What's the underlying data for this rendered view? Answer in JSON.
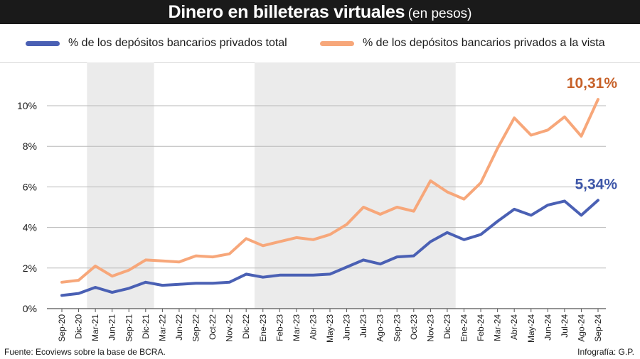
{
  "header": {
    "title": "Dinero en billeteras virtuales",
    "subtitle": "(en pesos)"
  },
  "legend": [
    {
      "label": "% de los depósitos bancarios privados total",
      "color": "#4a60b4"
    },
    {
      "label": "% de los depósitos bancarios privados a la vista",
      "color": "#f7a77a"
    }
  ],
  "footer": {
    "source": "Fuente: Ecoviews sobre la base de BCRA.",
    "credit": "Infografía: G.P."
  },
  "chart_data": {
    "type": "line",
    "x": [
      "Sep-20",
      "Dic-20",
      "Mar-21",
      "Jun-21",
      "Sep-21",
      "Dic-21",
      "Mar-22",
      "Jun-22",
      "Sep-22",
      "Oct-22",
      "Nov-22",
      "Dic-22",
      "Ene-23",
      "Feb-23",
      "Mar-23",
      "Abr-23",
      "May-23",
      "Jun-23",
      "Jul-23",
      "Ago-23",
      "Sep-23",
      "Oct-23",
      "Nov-23",
      "Dic-23",
      "Ene-24",
      "Feb-24",
      "Mar-24",
      "Abr-24",
      "May-24",
      "Jun-24",
      "Jul-24",
      "Ago-24",
      "Sep-24"
    ],
    "series": [
      {
        "name": "% de los depósitos bancarios privados total",
        "color": "#4a60b4",
        "values": [
          0.65,
          0.75,
          1.05,
          0.8,
          1.0,
          1.3,
          1.15,
          1.2,
          1.25,
          1.25,
          1.3,
          1.7,
          1.55,
          1.65,
          1.65,
          1.65,
          1.7,
          2.05,
          2.4,
          2.2,
          2.55,
          2.6,
          3.3,
          3.75,
          3.4,
          3.65,
          4.3,
          4.9,
          4.6,
          5.1,
          5.3,
          4.6,
          5.34
        ],
        "end_label": "5,34%"
      },
      {
        "name": "% de los depósitos bancarios privados a la vista",
        "color": "#f7a77a",
        "values": [
          1.3,
          1.4,
          2.1,
          1.6,
          1.9,
          2.4,
          2.35,
          2.3,
          2.6,
          2.55,
          2.7,
          3.45,
          3.1,
          3.3,
          3.5,
          3.4,
          3.65,
          4.15,
          5.0,
          4.65,
          5.0,
          4.8,
          6.3,
          5.75,
          5.4,
          6.2,
          7.9,
          9.4,
          8.55,
          8.8,
          9.45,
          8.5,
          10.31
        ],
        "end_label": "10,31%"
      }
    ],
    "yticks": [
      "0%",
      "2%",
      "4%",
      "6%",
      "8%",
      "10%"
    ],
    "ytick_values": [
      0,
      2,
      4,
      6,
      8,
      10
    ],
    "ylim": [
      0,
      10.8
    ],
    "grid": true,
    "shaded_years": [
      "2021",
      "2023"
    ],
    "shade_color": "#ebebeb",
    "end_label_colors": {
      "total": "#3d56a8",
      "vista": "#c7622a"
    }
  }
}
